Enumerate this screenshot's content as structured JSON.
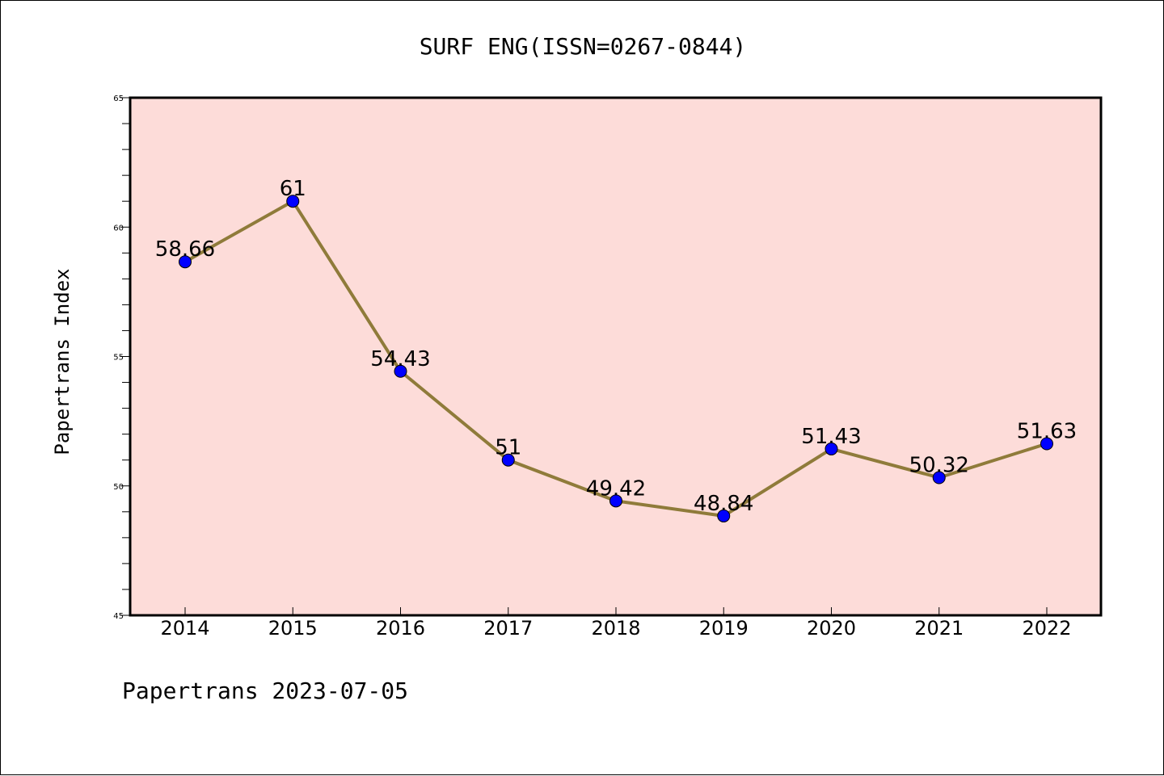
{
  "chart_data": {
    "type": "line",
    "title": "SURF ENG(ISSN=0267-0844)",
    "xlabel": "",
    "ylabel": "Papertrans Index",
    "categories": [
      "2014",
      "2015",
      "2016",
      "2017",
      "2018",
      "2019",
      "2020",
      "2021",
      "2022"
    ],
    "values": [
      58.66,
      61,
      54.43,
      51,
      49.42,
      48.84,
      51.43,
      50.32,
      51.63
    ],
    "data_labels": [
      "58.66",
      "61",
      "54.43",
      "51",
      "49.42",
      "48.84",
      "51.43",
      "50.32",
      "51.63"
    ],
    "ylim": [
      45,
      65
    ],
    "yticks": [
      45,
      50,
      55,
      60,
      65
    ],
    "grid": false,
    "legend": "none",
    "colors": {
      "plot_background": "#fddcd9",
      "line": "#8f7b3a",
      "marker": "#0000ff"
    }
  },
  "footer": {
    "text": "Papertrans 2023-07-05"
  }
}
